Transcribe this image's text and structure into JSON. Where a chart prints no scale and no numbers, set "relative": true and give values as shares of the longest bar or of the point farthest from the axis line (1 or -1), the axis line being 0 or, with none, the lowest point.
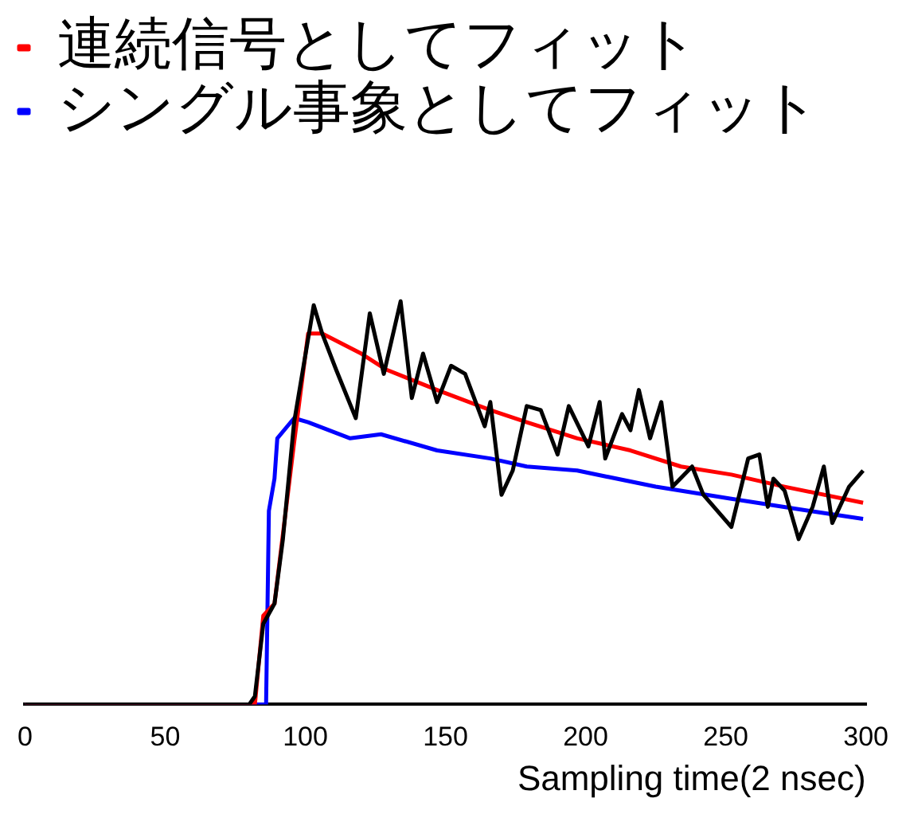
{
  "chart_data": {
    "type": "line",
    "relative": true,
    "xlabel": "Sampling time(2 nsec)",
    "xlim": [
      0,
      300
    ],
    "xticks": [
      0,
      50,
      100,
      150,
      200,
      250,
      300
    ],
    "legend": "top left",
    "marker": "none",
    "grid": false,
    "series": [
      {
        "color": "#000000",
        "x": [
          0,
          80,
          82,
          85,
          89,
          92,
          96,
          103,
          106,
          111,
          118,
          123,
          128,
          134,
          138,
          142,
          147,
          152,
          157,
          164,
          166,
          170,
          174,
          179,
          184,
          190,
          194,
          201,
          205,
          207,
          213,
          216,
          219,
          223,
          227,
          231,
          238,
          242,
          252,
          258,
          262,
          265,
          267,
          271,
          276,
          281,
          285,
          288,
          294,
          299
        ],
        "values": [
          0,
          0,
          0.02,
          0.2,
          0.25,
          0.41,
          0.7,
          0.99,
          0.92,
          0.83,
          0.71,
          0.97,
          0.82,
          1.0,
          0.76,
          0.87,
          0.75,
          0.84,
          0.82,
          0.69,
          0.75,
          0.52,
          0.58,
          0.74,
          0.73,
          0.62,
          0.74,
          0.64,
          0.75,
          0.61,
          0.72,
          0.68,
          0.78,
          0.66,
          0.75,
          0.54,
          0.59,
          0.52,
          0.44,
          0.61,
          0.62,
          0.49,
          0.56,
          0.53,
          0.41,
          0.49,
          0.59,
          0.45,
          0.54,
          0.58
        ]
      },
      {
        "name": "連続信号としてフィット",
        "color": "#ff0000",
        "x": [
          0,
          82,
          85,
          89,
          96,
          101,
          106,
          120,
          129,
          147,
          166,
          179,
          197,
          216,
          234,
          252,
          271,
          299
        ],
        "values": [
          0,
          0,
          0.22,
          0.25,
          0.65,
          0.92,
          0.92,
          0.87,
          0.83,
          0.78,
          0.73,
          0.7,
          0.66,
          0.63,
          0.59,
          0.57,
          0.54,
          0.5
        ]
      },
      {
        "name": "シングル事象としてフィット",
        "color": "#0000ff",
        "x": [
          0,
          86,
          87,
          89,
          90,
          96,
          101,
          116,
          127,
          147,
          166,
          179,
          197,
          225,
          252,
          280,
          299
        ],
        "values": [
          0,
          0,
          0.48,
          0.56,
          0.66,
          0.71,
          0.7,
          0.66,
          0.67,
          0.63,
          0.61,
          0.59,
          0.58,
          0.54,
          0.51,
          0.48,
          0.46
        ]
      }
    ]
  }
}
